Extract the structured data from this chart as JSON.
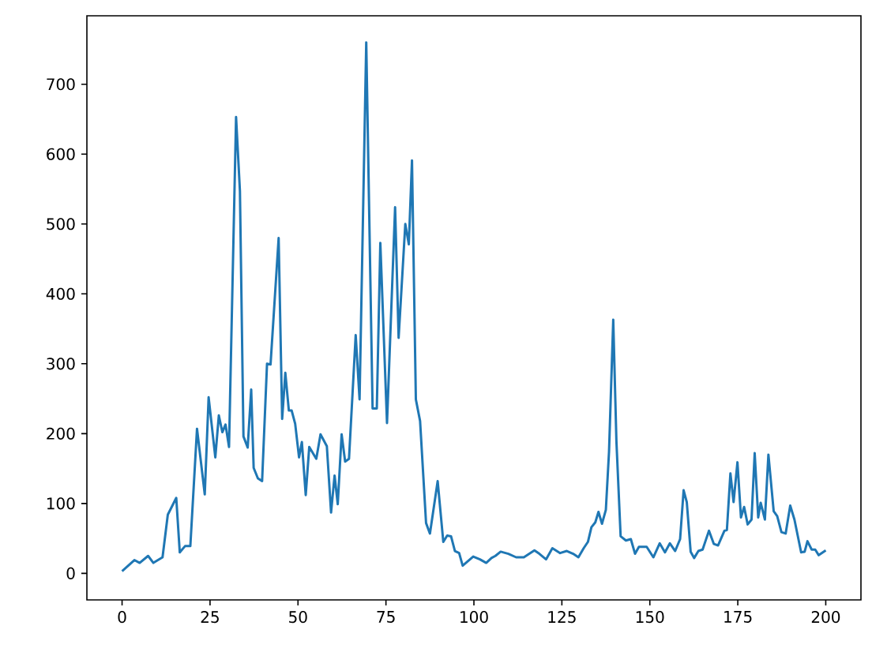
{
  "chart_data": {
    "type": "line",
    "xlim": [
      -10,
      210
    ],
    "ylim": [
      -38,
      798
    ],
    "xticks": [
      0,
      25,
      50,
      75,
      100,
      125,
      150,
      175,
      200
    ],
    "yticks": [
      0,
      100,
      200,
      300,
      400,
      500,
      600,
      700
    ],
    "grid": false,
    "marker": "none",
    "line_style": "solid",
    "series": [
      {
        "color": "#1f77b4",
        "x": [
          0,
          3.5,
          5,
          7.4,
          8.9,
          11.5,
          13,
          15.4,
          16.4,
          17.9,
          19.4,
          21.3,
          23.5,
          24.6,
          26.5,
          27.5,
          28.5,
          29.4,
          30.4,
          32.4,
          33.5,
          34.5,
          35.7,
          36.7,
          37.4,
          38.6,
          39.8,
          41.2,
          42.2,
          44.5,
          45.5,
          46.4,
          47.4,
          48.2,
          49.2,
          50.3,
          51.1,
          52.2,
          53.2,
          55.2,
          56.4,
          58.2,
          59.4,
          60.4,
          61.3,
          62.4,
          63.4,
          64.5,
          66.4,
          67.5,
          69.4,
          71.2,
          72.4,
          73.4,
          75.3,
          77.6,
          78.6,
          80.5,
          81.5,
          82.4,
          83.5,
          84.7,
          86.4,
          87.5,
          89.7,
          91.3,
          92.4,
          93.5,
          94.6,
          95.8,
          96.8,
          99.8,
          101.7,
          103.5,
          105,
          106.1,
          107.6,
          109.8,
          112,
          114.2,
          117.2,
          118.6,
          120.5,
          122.3,
          124.5,
          126.4,
          128.2,
          129.7,
          131.2,
          132.4,
          133.4,
          134.5,
          135.4,
          136.4,
          137.5,
          138.4,
          139.6,
          140.5,
          141.7,
          143.2,
          144.6,
          145.8,
          146.9,
          149.1,
          151,
          152.8,
          154.3,
          155.7,
          157.2,
          158.6,
          159.6,
          160.5,
          161.6,
          162.6,
          163.8,
          165,
          166.8,
          168.2,
          169.4,
          171.2,
          171.9,
          172.9,
          173.8,
          174.9,
          175.9,
          176.8,
          177.8,
          178.9,
          179.8,
          180.8,
          181.5,
          182.7,
          183.7,
          185.2,
          186.2,
          187.4,
          188.6,
          189.9,
          191.1,
          193,
          194,
          194.8,
          196,
          197,
          198,
          200
        ],
        "values": [
          3,
          19,
          15,
          25,
          15,
          23,
          84,
          108,
          30,
          39,
          39,
          207,
          113,
          252,
          166,
          226,
          202,
          213,
          181,
          653,
          547,
          196,
          180,
          263,
          151,
          136,
          132,
          300,
          299,
          480,
          221,
          287,
          233,
          233,
          214,
          166,
          188,
          112,
          181,
          164,
          199,
          182,
          87,
          140,
          99,
          199,
          160,
          164,
          341,
          249,
          760,
          236,
          236,
          473,
          215,
          524,
          337,
          500,
          471,
          591,
          249,
          218,
          72,
          57,
          132,
          45,
          54,
          53,
          32,
          29,
          11,
          24,
          20,
          15,
          22,
          25,
          31,
          28,
          23,
          23,
          33,
          28,
          20,
          36,
          29,
          32,
          28,
          23,
          36,
          45,
          66,
          73,
          88,
          71,
          91,
          174,
          363,
          189,
          53,
          47,
          49,
          28,
          38,
          38,
          23,
          43,
          30,
          43,
          32,
          49,
          119,
          102,
          31,
          22,
          32,
          34,
          61,
          42,
          40,
          61,
          62,
          143,
          102,
          159,
          80,
          95,
          70,
          77,
          172,
          80,
          101,
          77,
          170,
          89,
          82,
          59,
          57,
          97,
          77,
          30,
          31,
          46,
          34,
          34,
          26,
          33
        ]
      }
    ]
  }
}
